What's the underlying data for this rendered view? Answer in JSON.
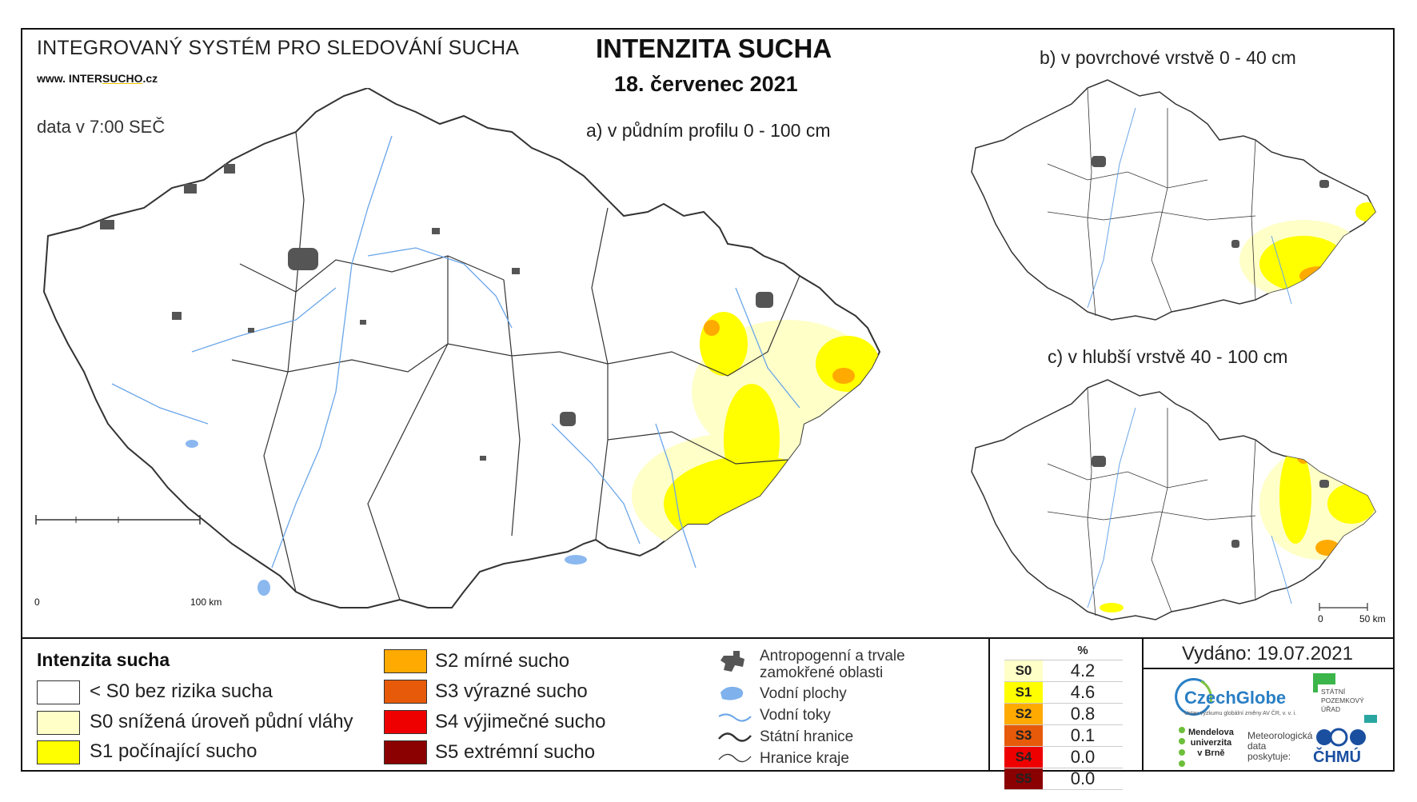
{
  "header": {
    "system_title": "INTEGROVANÝ SYSTÉM PRO SLEDOVÁNÍ SUCHA",
    "url_prefix": "www. INTER",
    "url_highlight": "SUCHO",
    "url_suffix": ".cz",
    "data_time": "data v 7:00 SEČ",
    "main_title": "INTENZITA SUCHA",
    "date": "18. červenec 2021"
  },
  "maps": {
    "a_title": "a) v půdním profilu 0 - 100 cm",
    "b_title": "b) v povrchové vrstvě 0 - 40 cm",
    "c_title": "c) v hlubší vrstvě 40 - 100 cm",
    "scale_main_start": "0",
    "scale_main_end": "100 km",
    "scale_small_start": "0",
    "scale_small_end": "50 km"
  },
  "legend": {
    "title": "Intenzita sucha",
    "classes": [
      {
        "label": "< S0 bez rizika sucha",
        "color": "#ffffff"
      },
      {
        "label": "S0 snížená úroveň půdní vláhy",
        "color": "#ffffc8"
      },
      {
        "label": "S1 počínající sucho",
        "color": "#ffff00"
      },
      {
        "label": "S2 mírné sucho",
        "color": "#ffaa00"
      },
      {
        "label": "S3 výrazné sucho",
        "color": "#e65a0a"
      },
      {
        "label": "S4 výjimečné sucho",
        "color": "#ee0000"
      },
      {
        "label": "S5 extrémní sucho",
        "color": "#8b0000"
      }
    ],
    "symbols": [
      {
        "label": "Antropogenní a trvale\nzamokřené oblasti",
        "icon": "urban-area-icon"
      },
      {
        "label": "Vodní plochy",
        "icon": "water-body-icon"
      },
      {
        "label": "Vodní toky",
        "icon": "river-icon"
      },
      {
        "label": "Státní hranice",
        "icon": "state-border-icon"
      },
      {
        "label": "Hranice kraje",
        "icon": "region-border-icon"
      }
    ]
  },
  "stats": {
    "header": "%",
    "rows": [
      {
        "code": "S0",
        "value": "4.2",
        "color": "#ffffc8"
      },
      {
        "code": "S1",
        "value": "4.6",
        "color": "#ffff00"
      },
      {
        "code": "S2",
        "value": "0.8",
        "color": "#ffaa00"
      },
      {
        "code": "S3",
        "value": "0.1",
        "color": "#e65a0a"
      },
      {
        "code": "S4",
        "value": "0.0",
        "color": "#ee0000"
      },
      {
        "code": "S5",
        "value": "0.0",
        "color": "#8b0000"
      }
    ]
  },
  "footer": {
    "issued": "Vydáno: 19.07.2021",
    "czechglobe": "CzechGlobe",
    "czechglobe_sub": "Ústav výzkumu globální změny AV ČR, v. v. i.",
    "spu": "STÁTNÍ\nPOZEMKOVÝ\nÚŘAD",
    "mendel": "Mendelova\nuniverzita\nv Brně",
    "meteo": "Meteorologická\ndata\nposkytuje:",
    "chmu": "ČHMÚ"
  }
}
